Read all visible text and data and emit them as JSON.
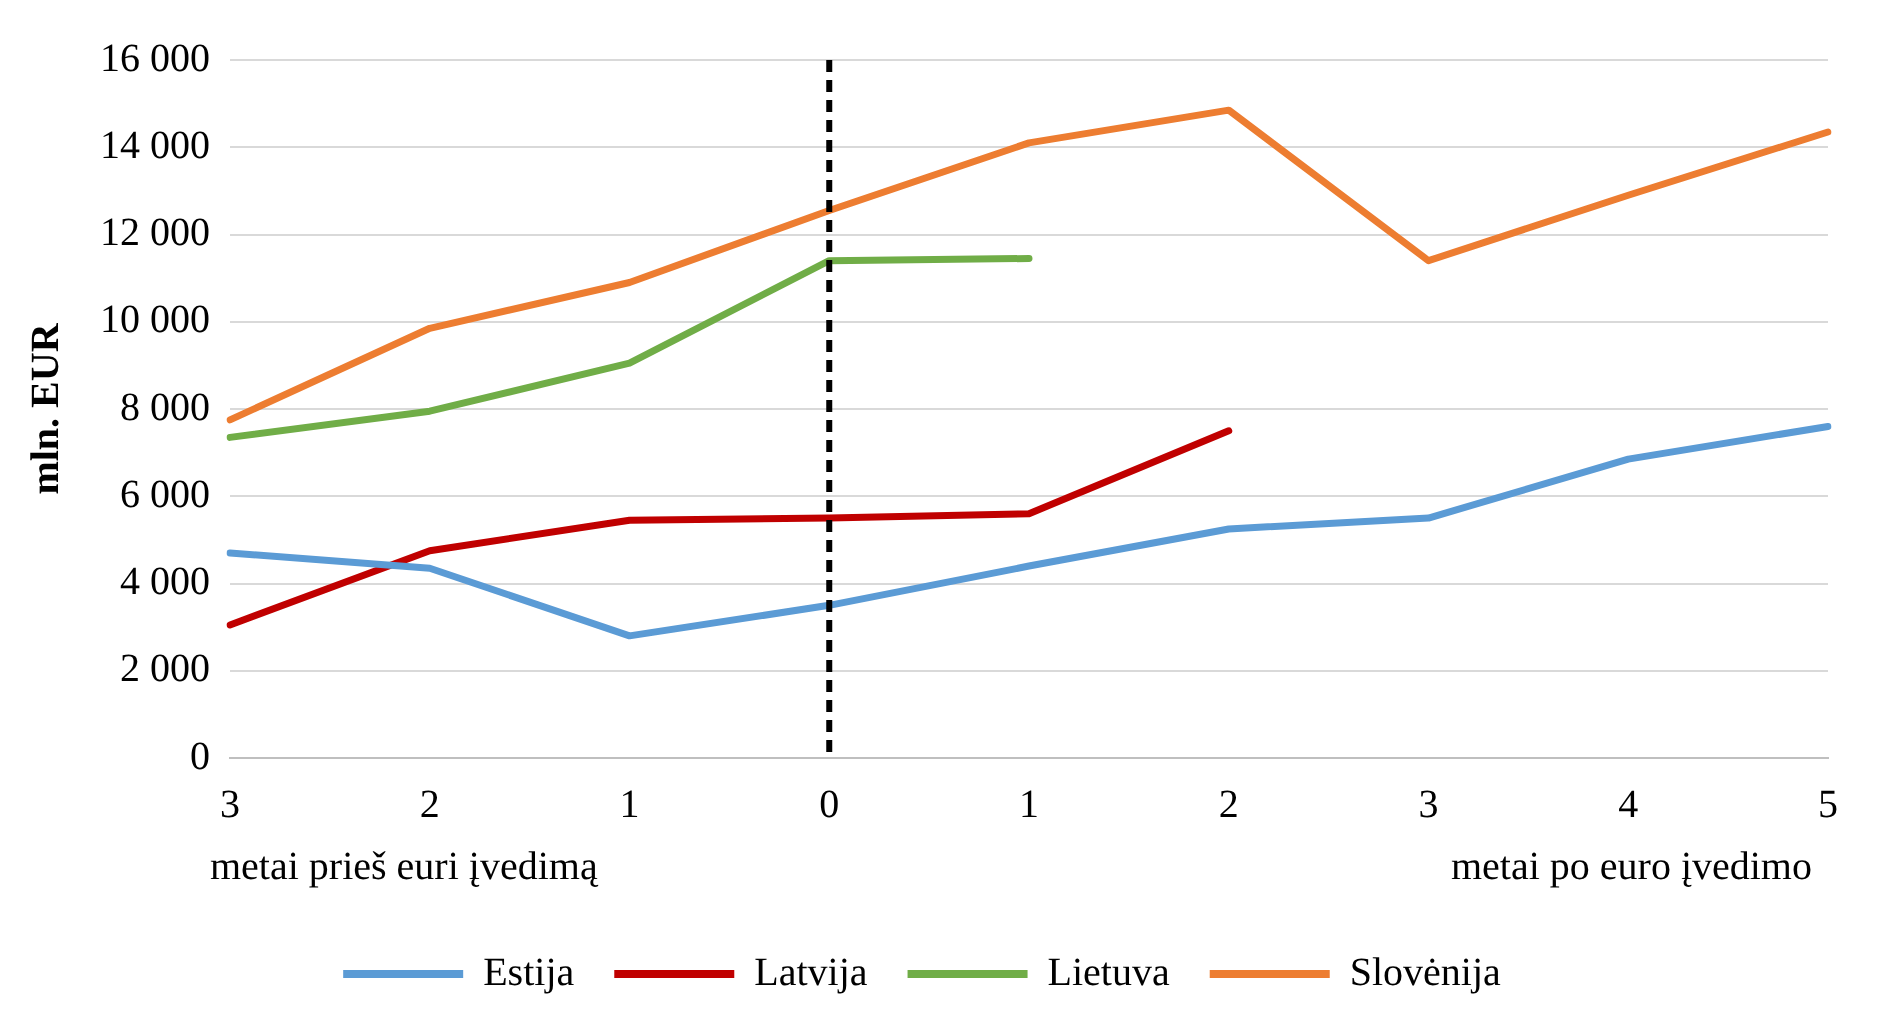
{
  "chart_data": {
    "type": "line",
    "ylabel": "mln. EUR",
    "categories": [
      "3",
      "2",
      "1",
      "0",
      "1",
      "2",
      "3",
      "4",
      "5"
    ],
    "series": [
      {
        "name": "Estija",
        "color": "#5b9bd5",
        "values": [
          4700,
          4350,
          2800,
          3500,
          4400,
          5250,
          5500,
          6850,
          7600
        ]
      },
      {
        "name": "Latvija",
        "color": "#c00000",
        "values": [
          3050,
          4750,
          5450,
          5500,
          5600,
          7500,
          null,
          null,
          null
        ]
      },
      {
        "name": "Lietuva",
        "color": "#70ad47",
        "values": [
          7350,
          7950,
          9050,
          11400,
          11450,
          null,
          null,
          null,
          null
        ]
      },
      {
        "name": "Slovėnija",
        "color": "#ed7d31",
        "values": [
          7750,
          9850,
          10900,
          12550,
          14100,
          14850,
          11400,
          12900,
          14350
        ]
      }
    ],
    "ylim": [
      0,
      16000
    ],
    "yticks": [
      0,
      {
        "value": 2000,
        "label": "2 000"
      },
      {
        "value": 4000,
        "label": "4 000"
      },
      {
        "value": 6000,
        "label": "6 000"
      },
      {
        "value": 8000,
        "label": "8 000"
      },
      {
        "value": 10000,
        "label": "10 000"
      },
      {
        "value": 12000,
        "label": "12 000"
      },
      {
        "value": 14000,
        "label": "14 000"
      },
      {
        "value": 16000,
        "label": "16 000"
      }
    ],
    "ref_lines": [
      {
        "axis": "x",
        "value": "0",
        "color": "#000000",
        "line_style": "dashed"
      }
    ],
    "annotations": [
      "metai prieš euri įvedimą",
      "metai po euro įvedimo"
    ],
    "grid": "y",
    "legend": "bottom",
    "marker": "none",
    "line_style": "solid"
  }
}
